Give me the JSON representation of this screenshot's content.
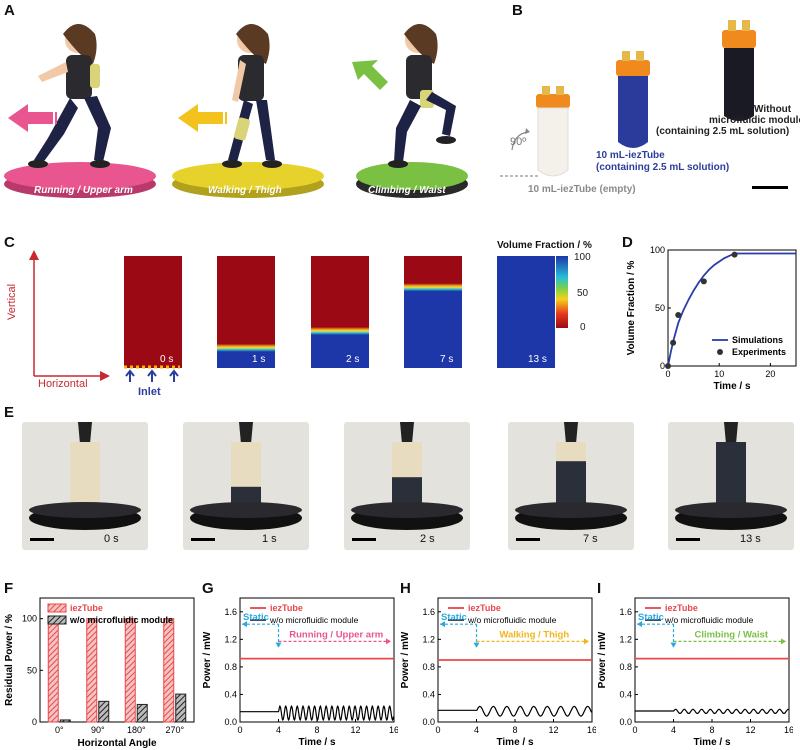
{
  "panel_letters": {
    "A": "A",
    "B": "B",
    "C": "C",
    "D": "D",
    "E": "E",
    "F": "F",
    "G": "G",
    "H": "H",
    "I": "I"
  },
  "panel_a": {
    "scenes": [
      {
        "label": "Running / Upper arm",
        "disc_color": "#e8558f",
        "arrow_color": "#e8558f"
      },
      {
        "label": "Walking / Thigh",
        "disc_color": "#e6d22a",
        "arrow_color": "#f3c21c"
      },
      {
        "label": "Climbing / Waist",
        "disc_color": "#7ac043",
        "arrow_color": "#7ac043"
      }
    ]
  },
  "panel_b": {
    "angle": "90º",
    "empty_label": "10 mL-iezTube (empty)",
    "filled_label_1": "10 mL-iezTube",
    "filled_label_2": "(containing 2.5 mL solution)",
    "without_1": "Without",
    "without_2": "microfluidic module",
    "without_3": "(containing 2.5 mL solution)"
  },
  "panel_c": {
    "vertical": "Vertical",
    "horizontal": "Horizontal",
    "inlet": "Inlet",
    "times": [
      "0 s",
      "1 s",
      "2 s",
      "7 s",
      "13 s"
    ],
    "fill_fraction": [
      0,
      0.18,
      0.33,
      0.72,
      1.0
    ],
    "colorbar_title": "Volume Fraction / %",
    "colorbar_ticks": [
      "100",
      "50",
      "0"
    ]
  },
  "panel_e": {
    "times": [
      "0 s",
      "1 s",
      "2 s",
      "7 s",
      "13 s"
    ],
    "fill_fraction": [
      0,
      0.3,
      0.45,
      0.7,
      1.0
    ]
  },
  "panel_labels": {
    "sim_legend": "Simulations",
    "exp_legend": "Experiments",
    "f_legend_1": "iezTube",
    "f_legend_2": "w/o microfluidic module",
    "legend_iez": "iezTube",
    "legend_wo": "w/o microfluidic module",
    "static": "Static"
  },
  "chart_data": [
    {
      "id": "D",
      "type": "line",
      "xlabel": "Time / s",
      "ylabel": "Volume Fraction / %",
      "xlim": [
        0,
        25
      ],
      "ylim": [
        0,
        100
      ],
      "xticks": [
        0,
        10,
        20
      ],
      "yticks": [
        0,
        50,
        100
      ],
      "series": [
        {
          "name": "Simulations",
          "kind": "line",
          "x": [
            0,
            0.5,
            1,
            2,
            3,
            4,
            5,
            6,
            7,
            8,
            9,
            10,
            11,
            12,
            13,
            25
          ],
          "y": [
            0,
            11,
            21,
            37,
            48,
            57,
            65,
            72,
            78,
            83,
            87,
            90,
            93,
            95,
            97,
            97
          ]
        },
        {
          "name": "Experiments",
          "kind": "scatter",
          "x": [
            0,
            1,
            2,
            7,
            13
          ],
          "y": [
            0,
            20,
            44,
            73,
            96
          ]
        }
      ]
    },
    {
      "id": "F",
      "type": "bar",
      "xlabel": "Horizontal Angle",
      "ylabel": "Residual Power / %",
      "ylim": [
        0,
        120
      ],
      "yticks": [
        0,
        50,
        100
      ],
      "categories": [
        "0°",
        "90°",
        "180°",
        "270°"
      ],
      "series": [
        {
          "name": "iezTube",
          "values": [
            100,
            100,
            100,
            100
          ],
          "color": "#e8484a"
        },
        {
          "name": "w/o microfluidic module",
          "values": [
            2,
            20,
            17,
            27
          ],
          "color": "#222222"
        }
      ]
    },
    {
      "id": "G",
      "type": "line",
      "xlabel": "Time / s",
      "ylabel": "Power / mW",
      "xlim": [
        0,
        16
      ],
      "ylim": [
        0,
        1.8
      ],
      "xticks": [
        0,
        4,
        8,
        12,
        16
      ],
      "yticks": [
        0.0,
        0.4,
        0.8,
        1.2,
        1.6
      ],
      "ytick_labels": [
        "0.0",
        "0.4",
        "0.8",
        "1.2",
        "1.6"
      ],
      "motion_label": "Running / Upper arm",
      "motion_color": "#e8558f",
      "series": [
        {
          "name": "iezTube",
          "level": 0.92,
          "color": "#e8484a"
        },
        {
          "name": "w/o microfluidic module",
          "level": 0.15,
          "amp": 0.1,
          "period": 0.6,
          "color": "#000000"
        }
      ]
    },
    {
      "id": "H",
      "type": "line",
      "xlabel": "Time / s",
      "ylabel": "Power / mW",
      "xlim": [
        0,
        16
      ],
      "ylim": [
        0,
        1.8
      ],
      "xticks": [
        0,
        4,
        8,
        12,
        16
      ],
      "yticks": [
        0.0,
        0.4,
        0.8,
        1.2,
        1.6
      ],
      "ytick_labels": [
        "0.0",
        "0.4",
        "0.8",
        "1.2",
        "1.6"
      ],
      "motion_label": "Walking / Thigh",
      "motion_color": "#f0b619",
      "series": [
        {
          "name": "iezTube",
          "level": 0.9,
          "color": "#e8484a"
        },
        {
          "name": "w/o microfluidic module",
          "level": 0.17,
          "amp": 0.07,
          "period": 1.4,
          "color": "#000000"
        }
      ]
    },
    {
      "id": "I",
      "type": "line",
      "xlabel": "Time / s",
      "ylabel": "Power / mW",
      "xlim": [
        0,
        16
      ],
      "ylim": [
        0,
        1.8
      ],
      "xticks": [
        0,
        4,
        8,
        12,
        16
      ],
      "yticks": [
        0.0,
        0.4,
        0.8,
        1.2,
        1.6
      ],
      "ytick_labels": [
        "0.0",
        "0.4",
        "0.8",
        "1.2",
        "1.6"
      ],
      "motion_label": "Climbing / Waist",
      "motion_color": "#7ac043",
      "series": [
        {
          "name": "iezTube",
          "level": 0.92,
          "color": "#e8484a"
        },
        {
          "name": "w/o microfluidic module",
          "level": 0.16,
          "amp": 0.03,
          "period": 0.9,
          "color": "#000000"
        }
      ]
    }
  ]
}
